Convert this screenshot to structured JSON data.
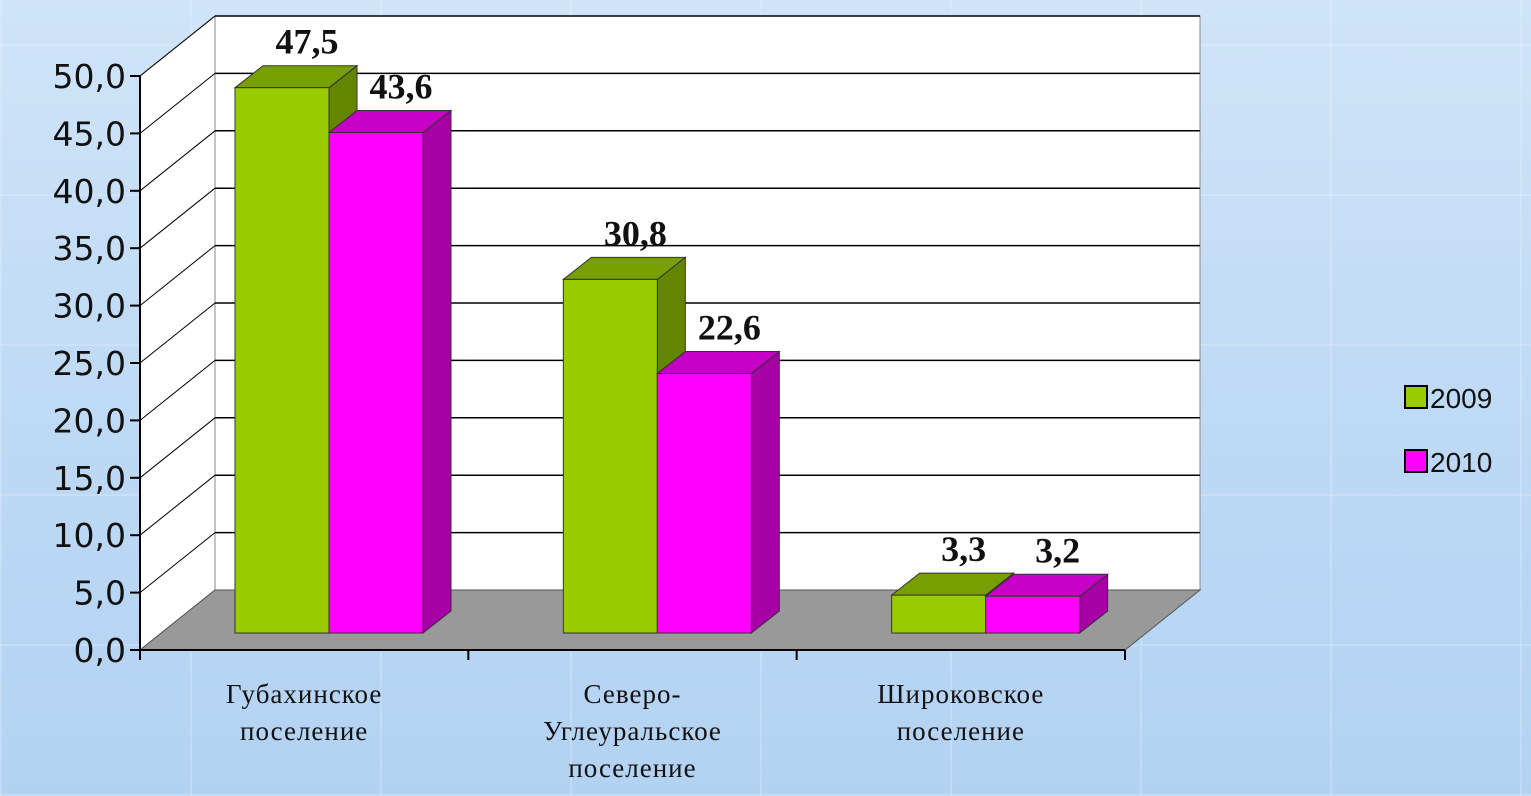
{
  "chart_data": {
    "type": "bar3d",
    "categories": [
      [
        "Губахинское",
        "поселение"
      ],
      [
        "Северо-",
        "Углеуральское",
        "поселение"
      ],
      [
        "Широковское",
        "поселение"
      ]
    ],
    "series": [
      {
        "name": "2009",
        "color": "#99cc00",
        "values": [
          47.5,
          30.8,
          3.3
        ],
        "value_labels": [
          "47,5",
          "30,8",
          "3,3"
        ]
      },
      {
        "name": "2010",
        "color": "#ff00ff",
        "values": [
          43.6,
          22.6,
          3.2
        ],
        "value_labels": [
          "43,6",
          "22,6",
          "3,2"
        ]
      }
    ],
    "ylim": [
      0,
      50
    ],
    "yticks": [
      {
        "value": 0,
        "label": "0,0"
      },
      {
        "value": 5,
        "label": "5,0"
      },
      {
        "value": 10,
        "label": "10,0"
      },
      {
        "value": 15,
        "label": "15,0"
      },
      {
        "value": 20,
        "label": "20,0"
      },
      {
        "value": 25,
        "label": "25,0"
      },
      {
        "value": 30,
        "label": "30,0"
      },
      {
        "value": 35,
        "label": "35,0"
      },
      {
        "value": 40,
        "label": "40,0"
      },
      {
        "value": 45,
        "label": "45,0"
      },
      {
        "value": 50,
        "label": "50,0"
      }
    ],
    "grid": true,
    "legend": "right"
  }
}
